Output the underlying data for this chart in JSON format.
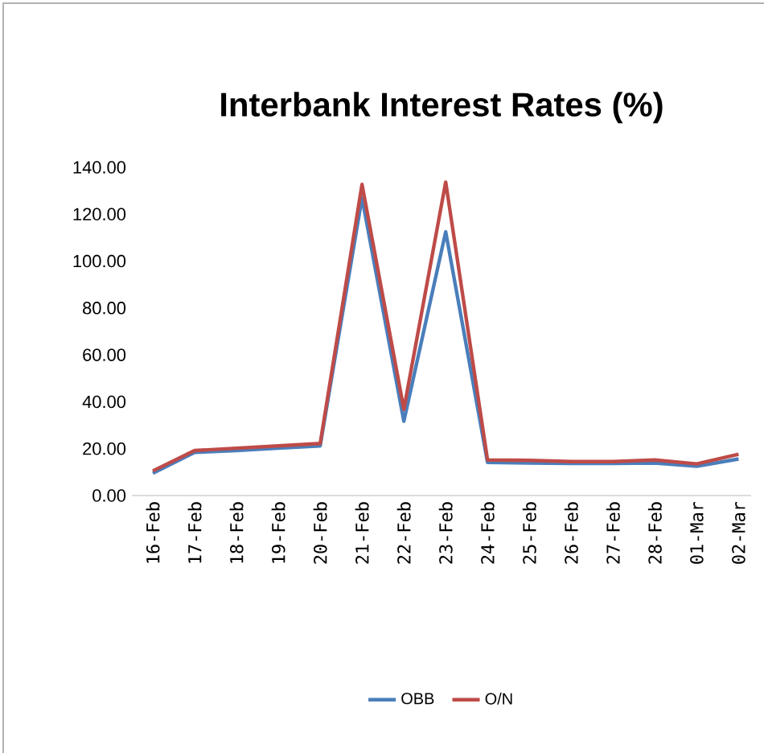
{
  "chart_data": {
    "type": "line",
    "title": "Interbank Interest Rates (%)",
    "categories": [
      "16-Feb",
      "17-Feb",
      "18-Feb",
      "19-Feb",
      "20-Feb",
      "21-Feb",
      "22-Feb",
      "23-Feb",
      "24-Feb",
      "25-Feb",
      "26-Feb",
      "27-Feb",
      "28-Feb",
      "01-Mar",
      "02-Mar"
    ],
    "series": [
      {
        "name": "OBB",
        "color": "#4a7ebb",
        "values": [
          9.5,
          18.4,
          19.2,
          20.2,
          21.2,
          127,
          31.7,
          112.5,
          14.1,
          13.9,
          13.7,
          13.7,
          13.9,
          12.5,
          15.6
        ]
      },
      {
        "name": "O/N",
        "color": "#be4b48",
        "values": [
          10.5,
          19.2,
          20.2,
          21.2,
          22.2,
          132.7,
          36.8,
          133.7,
          15.2,
          15,
          14.5,
          14.5,
          15.2,
          13.5,
          17.6
        ]
      }
    ],
    "ylim": [
      0,
      140
    ],
    "yticks": [
      {
        "value": 0,
        "label": "0.00"
      },
      {
        "value": 20,
        "label": "20.00"
      },
      {
        "value": 40,
        "label": "40.00"
      },
      {
        "value": 60,
        "label": "60.00"
      },
      {
        "value": 80,
        "label": "80.00"
      },
      {
        "value": 100,
        "label": "100.00"
      },
      {
        "value": 120,
        "label": "120.00"
      },
      {
        "value": 140,
        "label": "140.00"
      }
    ],
    "grid": false,
    "legend": "bottom",
    "marker": "none",
    "line_style": "solid"
  }
}
